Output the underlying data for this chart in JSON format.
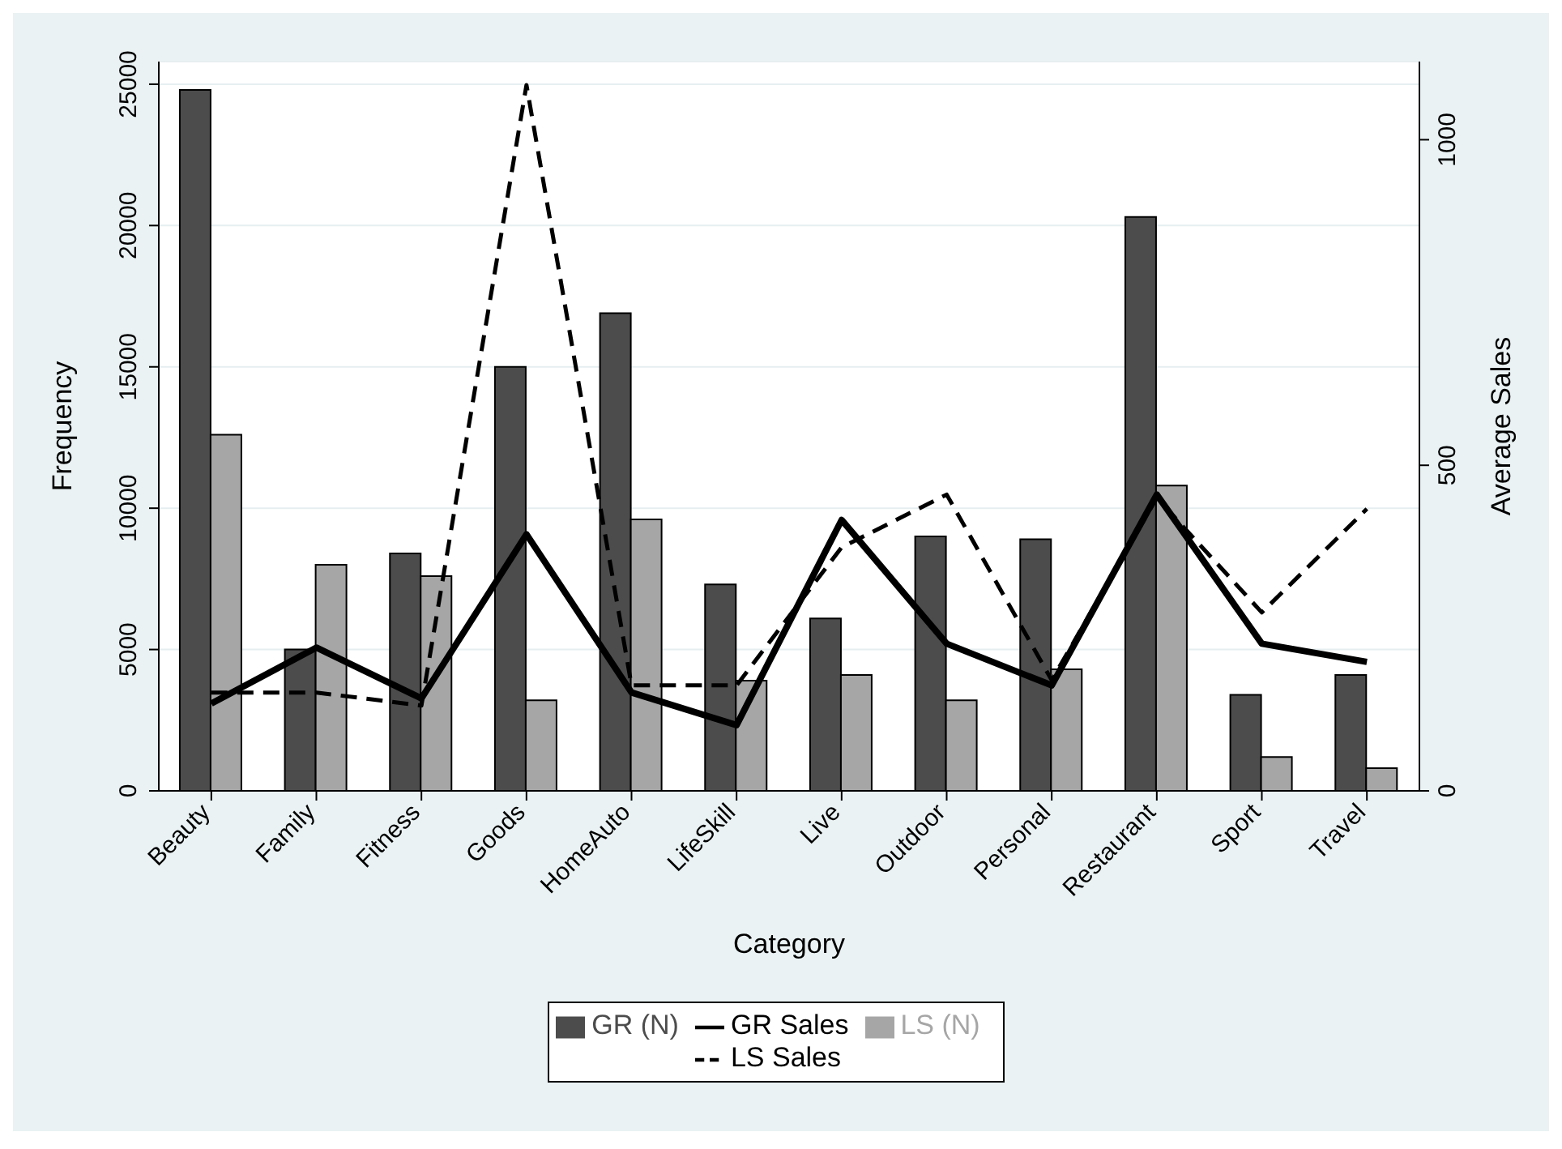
{
  "chart_data": {
    "type": "bar",
    "xlabel": "Category",
    "ylabel": "Frequency",
    "y2label": "Average Sales",
    "categories": [
      "Beauty",
      "Family",
      "Fitness",
      "Goods",
      "HomeAuto",
      "LifeSkill",
      "Live",
      "Outdoor",
      "Personal",
      "Restaurant",
      "Sport",
      "Travel"
    ],
    "series": [
      {
        "name": "GR (N)",
        "color": "#4c4c4c",
        "values": [
          24800,
          5000,
          8400,
          15000,
          16900,
          7300,
          6100,
          9000,
          8900,
          20300,
          3400,
          4100
        ]
      },
      {
        "name": "LS (N)",
        "color": "#a6a6a6",
        "values": [
          12600,
          8000,
          7600,
          3200,
          9600,
          3900,
          4100,
          3200,
          4300,
          10800,
          1200,
          800
        ]
      },
      {
        "name": "GR Sales",
        "type": "line",
        "axis": "y2",
        "color": "#000000",
        "line_style": "solid",
        "values": [
          134,
          220,
          142,
          394,
          151,
          101,
          416,
          226,
          162,
          455,
          226,
          198
        ]
      },
      {
        "name": "LS Sales",
        "type": "line",
        "axis": "y2",
        "color": "#000000",
        "line_style": "dashed",
        "values": [
          151,
          151,
          131,
          1084,
          162,
          162,
          374,
          455,
          170,
          450,
          274,
          433
        ]
      }
    ],
    "ylim": [
      0,
      25800
    ],
    "yticks": [
      0,
      5000,
      10000,
      15000,
      20000,
      25000
    ],
    "y2lim": [
      0,
      1120
    ],
    "y2ticks": [
      0,
      500,
      1000
    ],
    "grid": "y",
    "legend": "bottom",
    "marker": "none"
  }
}
